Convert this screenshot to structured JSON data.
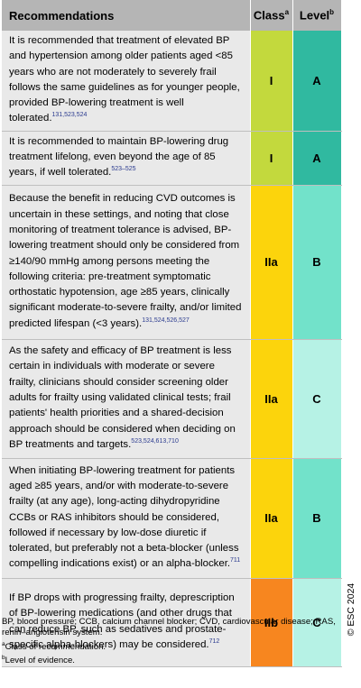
{
  "colors": {
    "header": "#b5b5b5",
    "rec_bg": "#e9e9e9"
  },
  "header": {
    "recommendations": "Recommendations",
    "class": "Class",
    "class_sup": "a",
    "level": "Level",
    "level_sup": "b"
  },
  "rows": [
    {
      "text": "It is recommended that treatment of elevated BP and hypertension among older patients aged <85 years who are not moderately to severely frail follows the same guidelines as for younger people, provided BP-lowering treatment is well tolerated.",
      "refs": "131,523,524",
      "class": "I",
      "class_color": "#c3d93d",
      "level": "A",
      "level_color": "#30b9a0"
    },
    {
      "text": "It is recommended to maintain BP-lowering drug treatment lifelong, even beyond the age of 85 years, if well tolerated.",
      "refs": "523–525",
      "class": "I",
      "class_color": "#c3d93d",
      "level": "A",
      "level_color": "#30b9a0"
    },
    {
      "text": "Because the benefit in reducing CVD outcomes is uncertain in these settings, and noting that close monitoring of treatment tolerance is advised, BP-lowering treatment should only be considered from ≥140/90 mmHg among persons meeting the following criteria: pre-treatment symptomatic orthostatic hypotension, age ≥85 years, clinically significant moderate-to-severe frailty, and/or limited predicted lifespan (<3 years).",
      "refs": "131,524,526,527",
      "class": "IIa",
      "class_color": "#fcd40c",
      "level": "B",
      "level_color": "#72e2ca"
    },
    {
      "text": "As the safety and efficacy of BP treatment is less certain in individuals with moderate or severe frailty, clinicians should consider screening older adults for frailty using validated clinical tests; frail patients' health priorities and a shared-decision approach should be considered when deciding on BP treatments and targets.",
      "refs": "523,524,613,710",
      "class": "IIa",
      "class_color": "#fcd40c",
      "level": "C",
      "level_color": "#b6f2e5"
    },
    {
      "text": "When initiating BP-lowering treatment for patients aged ≥85 years, and/or with moderate-to-severe frailty (at any age), long-acting dihydropyridine CCBs or RAS inhibitors should be considered, followed if necessary by low-dose diuretic if tolerated, but preferably not a beta-blocker (unless compelling indications exist) or an alpha-blocker.",
      "refs": "711",
      "class": "IIa",
      "class_color": "#fcd40c",
      "level": "B",
      "level_color": "#72e2ca"
    },
    {
      "text": "If BP drops with progressing frailty, deprescription of BP-lowering medications (and other drugs that can reduce BP, such as sedatives and prostate-specific alpha-blockers) may be considered.",
      "refs": "712",
      "class": "IIb",
      "class_color": "#f7861f",
      "level": "C",
      "level_color": "#b6f2e5"
    }
  ],
  "footer": {
    "abbreviations": "BP, blood pressure; CCB, calcium channel blocker; CVD, cardiovascular disease; RAS, renin–angiotensin system.",
    "note_a_marker": "a",
    "note_a": "Class of recommendation.",
    "note_b_marker": "b",
    "note_b": "Level of evidence."
  },
  "watermark": "© ESC 2024"
}
